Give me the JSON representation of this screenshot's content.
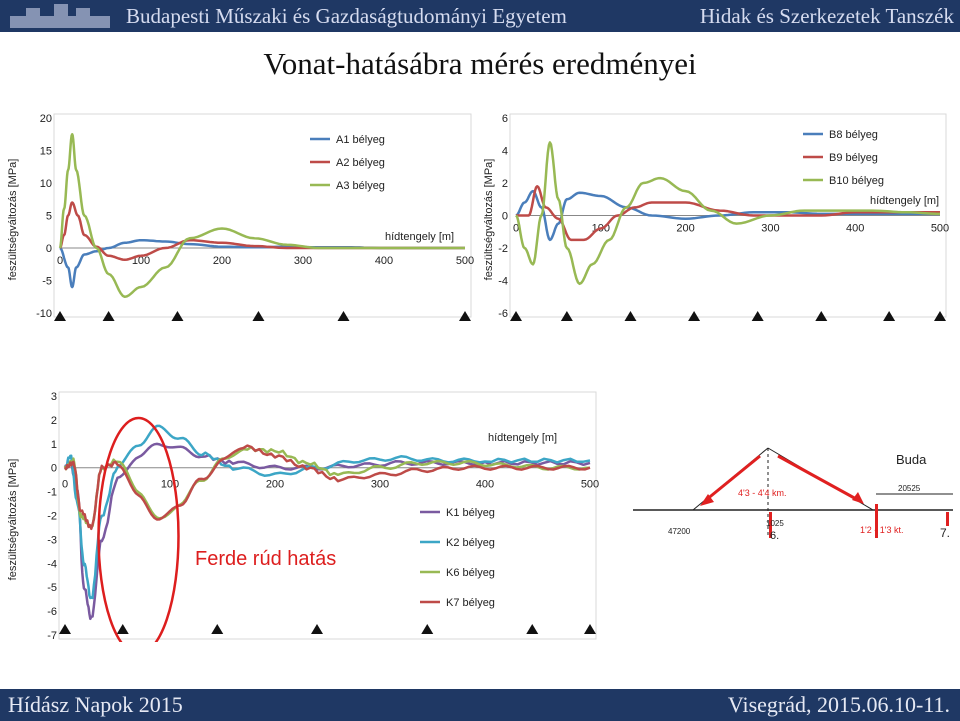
{
  "header": {
    "university": "Budapesti Műszaki és Gazdaságtudományi Egyetem",
    "department": "Hidak és Szerkezetek Tanszék"
  },
  "title": "Vonat-hatásábra mérés eredményei",
  "footer": {
    "event": "Hídász Napok 2015",
    "place_date": "Visegrád, 2015.06.10-11."
  },
  "chart_data": [
    {
      "type": "line",
      "xlabel": "hídtengely [m]",
      "ylabel": "feszültségváltozás [MPa]",
      "xlim": [
        0,
        500
      ],
      "ylim": [
        -10,
        20
      ],
      "xticks": [
        0,
        100,
        200,
        300,
        400,
        500
      ],
      "yticks": [
        -10,
        -5,
        0,
        5,
        10,
        15,
        20
      ],
      "legend": "top-center",
      "supports_x": [
        0,
        60,
        145,
        245,
        350,
        500
      ],
      "series": [
        {
          "name": "A1 bélyeg",
          "color": "#4a7ebb",
          "x": [
            0,
            10,
            15,
            20,
            30,
            45,
            60,
            80,
            100,
            130,
            160,
            200,
            240,
            280,
            320,
            360,
            400,
            450,
            500
          ],
          "y": [
            0,
            -3,
            -6,
            -3,
            -1,
            -0.5,
            0,
            0.8,
            1.2,
            1,
            0.6,
            0.2,
            0.1,
            0.2,
            0.1,
            0.1,
            0,
            0,
            0
          ]
        },
        {
          "name": "A2 bélyeg",
          "color": "#be4b48",
          "x": [
            0,
            5,
            10,
            15,
            22,
            30,
            45,
            60,
            80,
            100,
            130,
            160,
            200,
            240,
            280,
            320,
            360,
            400,
            450,
            500
          ],
          "y": [
            0,
            2,
            5,
            7,
            5,
            2,
            0.2,
            -1.2,
            -1.8,
            -1.2,
            0,
            1.2,
            0.8,
            0.3,
            0,
            0,
            0,
            0,
            0,
            0
          ]
        },
        {
          "name": "A3 bélyeg",
          "color": "#98b954",
          "x": [
            0,
            5,
            10,
            15,
            20,
            30,
            45,
            60,
            80,
            100,
            130,
            160,
            200,
            240,
            280,
            320,
            360,
            400,
            450,
            500
          ],
          "y": [
            0,
            6,
            12,
            17.5,
            12,
            5,
            0,
            -4,
            -7.5,
            -6,
            -3,
            1.5,
            3,
            1.5,
            0.5,
            0,
            0,
            0,
            0,
            0
          ]
        }
      ]
    },
    {
      "type": "line",
      "xlabel": "hídtengely [m]",
      "ylabel": "feszültségváltozás [MPa]",
      "xlim": [
        0,
        500
      ],
      "ylim": [
        -6,
        6
      ],
      "xticks": [
        0,
        100,
        200,
        300,
        400,
        500
      ],
      "yticks": [
        -6,
        -4,
        -2,
        0,
        2,
        4,
        6
      ],
      "legend": "top-right",
      "supports_x": [
        0,
        60,
        135,
        210,
        285,
        360,
        440,
        500
      ],
      "series": [
        {
          "name": "B8 bélyeg",
          "color": "#4a7ebb",
          "x": [
            0,
            10,
            20,
            30,
            40,
            50,
            60,
            75,
            100,
            130,
            160,
            200,
            240,
            280,
            320,
            360,
            400,
            450,
            500
          ],
          "y": [
            0,
            0.8,
            1.5,
            0.5,
            -1.5,
            -0.5,
            1,
            1.4,
            1.2,
            0.5,
            0,
            -0.2,
            0,
            0.2,
            0.2,
            0.1,
            0.1,
            0.1,
            0.1
          ]
        },
        {
          "name": "B9 bélyeg",
          "color": "#be4b48",
          "x": [
            0,
            15,
            25,
            35,
            50,
            65,
            80,
            100,
            120,
            140,
            160,
            200,
            240,
            280,
            320,
            360,
            400,
            450,
            500
          ],
          "y": [
            0,
            0,
            1.8,
            0.5,
            -0.2,
            -1.5,
            -1.5,
            -0.8,
            0,
            0.5,
            0.8,
            0.8,
            0.3,
            0,
            0,
            0,
            0.2,
            0.2,
            0.2
          ]
        },
        {
          "name": "B10 bélyeg",
          "color": "#98b954",
          "x": [
            0,
            10,
            20,
            30,
            40,
            50,
            60,
            75,
            90,
            110,
            130,
            150,
            170,
            200,
            230,
            260,
            300,
            340,
            380,
            420,
            460,
            500
          ],
          "y": [
            0,
            -2,
            -3,
            0,
            4.5,
            1,
            -2,
            -4.2,
            -3,
            -1.5,
            0.5,
            2,
            2.3,
            1.5,
            0.3,
            -0.5,
            0,
            0.3,
            0.3,
            0.3,
            0.2,
            0.1
          ]
        }
      ]
    },
    {
      "type": "line",
      "xlabel": "hídtengely [m]",
      "ylabel": "feszültségváltozás [MPa]",
      "xlim": [
        0,
        500
      ],
      "ylim": [
        -7,
        3
      ],
      "xticks": [
        0,
        100,
        200,
        300,
        400,
        500
      ],
      "yticks": [
        -7,
        -6,
        -5,
        -4,
        -3,
        -2,
        -1,
        0,
        1,
        2,
        3
      ],
      "legend": "bottom-right",
      "annotation": "Ferde rúd hatás",
      "supports_x": [
        0,
        55,
        145,
        240,
        345,
        445,
        500
      ],
      "series": [
        {
          "name": "K1 bélyeg",
          "color": "#7a5aa0",
          "x": [
            0,
            5,
            12,
            18,
            25,
            35,
            50,
            70,
            90,
            110,
            130,
            160,
            200,
            240,
            280,
            320,
            360,
            400,
            450,
            500
          ],
          "y": [
            0,
            0.2,
            -1,
            -5,
            -6.3,
            -3,
            -0.5,
            0.5,
            1,
            0.8,
            0.5,
            0.2,
            0,
            0,
            0.1,
            0.2,
            0.2,
            0.2,
            0.2,
            0.2
          ]
        },
        {
          "name": "K2 bélyeg",
          "color": "#3ca6c6",
          "x": [
            0,
            5,
            12,
            18,
            25,
            35,
            50,
            70,
            90,
            110,
            130,
            160,
            200,
            240,
            280,
            320,
            360,
            400,
            450,
            500
          ],
          "y": [
            0,
            0.5,
            -1.5,
            -4,
            -5.5,
            -2,
            0,
            1,
            1.7,
            1.2,
            0.6,
            0,
            -0.3,
            0,
            0.3,
            0.4,
            0.3,
            0.3,
            0.3,
            0.3
          ]
        },
        {
          "name": "K6  bélyeg",
          "color": "#98b954",
          "x": [
            0,
            8,
            15,
            25,
            35,
            50,
            70,
            90,
            110,
            130,
            150,
            170,
            200,
            230,
            260,
            300,
            340,
            380,
            420,
            460,
            500
          ],
          "y": [
            0,
            0.3,
            -2,
            -2.5,
            0,
            0.3,
            -1,
            -2.2,
            -1.5,
            -0.5,
            0.3,
            0.8,
            0.7,
            0.2,
            -0.3,
            0,
            0.2,
            0.2,
            0.1,
            0,
            0
          ]
        },
        {
          "name": "K7  bélyeg",
          "color": "#be4b48",
          "x": [
            0,
            8,
            15,
            25,
            35,
            50,
            70,
            90,
            110,
            130,
            150,
            170,
            200,
            230,
            260,
            300,
            340,
            380,
            420,
            460,
            500
          ],
          "y": [
            0,
            0.2,
            -1.8,
            -2.5,
            0,
            0.2,
            -1.2,
            -2.2,
            -1.5,
            -0.5,
            0.3,
            0.9,
            0.5,
            0,
            -0.5,
            -0.3,
            -0.1,
            0,
            0,
            0,
            0
          ]
        }
      ]
    }
  ],
  "diagram": {
    "label_buda": "Buda",
    "dim_20525": "20525",
    "label_43_44": "4'3 - 4'4 km.",
    "dim_47200": "47200",
    "dim_1025": "1025",
    "node_6": "6.",
    "label_12_13": "1'2 - 1'3 kt.",
    "node_7": "7.",
    "colors": {
      "arrow": "#e02020",
      "line": "#222222"
    }
  }
}
